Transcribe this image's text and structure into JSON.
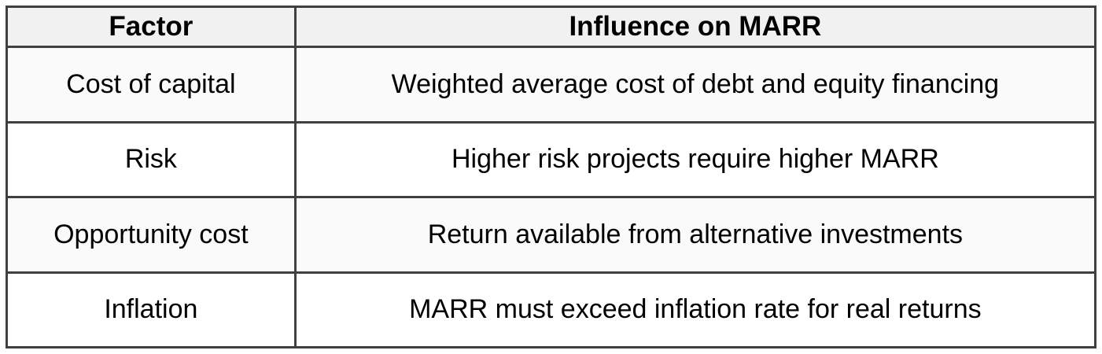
{
  "chart_data": {
    "type": "table",
    "title": "",
    "columns": [
      "Factor",
      "Influence on MARR"
    ],
    "rows": [
      [
        "Cost of capital",
        "Weighted average cost of debt and equity financing"
      ],
      [
        "Risk",
        "Higher risk projects require higher MARR"
      ],
      [
        "Opportunity cost",
        "Return available from alternative investments"
      ],
      [
        "Inflation",
        "MARR must exceed inflation rate for real returns"
      ]
    ]
  },
  "table": {
    "header": {
      "factor": "Factor",
      "influence": "Influence on MARR"
    },
    "rows": [
      {
        "factor": "Cost of capital",
        "influence": "Weighted average cost of debt and equity financing"
      },
      {
        "factor": "Risk",
        "influence": "Higher risk projects require higher MARR"
      },
      {
        "factor": "Opportunity cost",
        "influence": "Return available from alternative investments"
      },
      {
        "factor": "Inflation",
        "influence": "MARR must exceed inflation rate for real returns"
      }
    ],
    "colors": {
      "border": "#404040",
      "header_bg": "#f1f1f1",
      "row_odd_bg": "#fafafa",
      "row_even_bg": "#ffffff",
      "text": "#000000"
    }
  }
}
